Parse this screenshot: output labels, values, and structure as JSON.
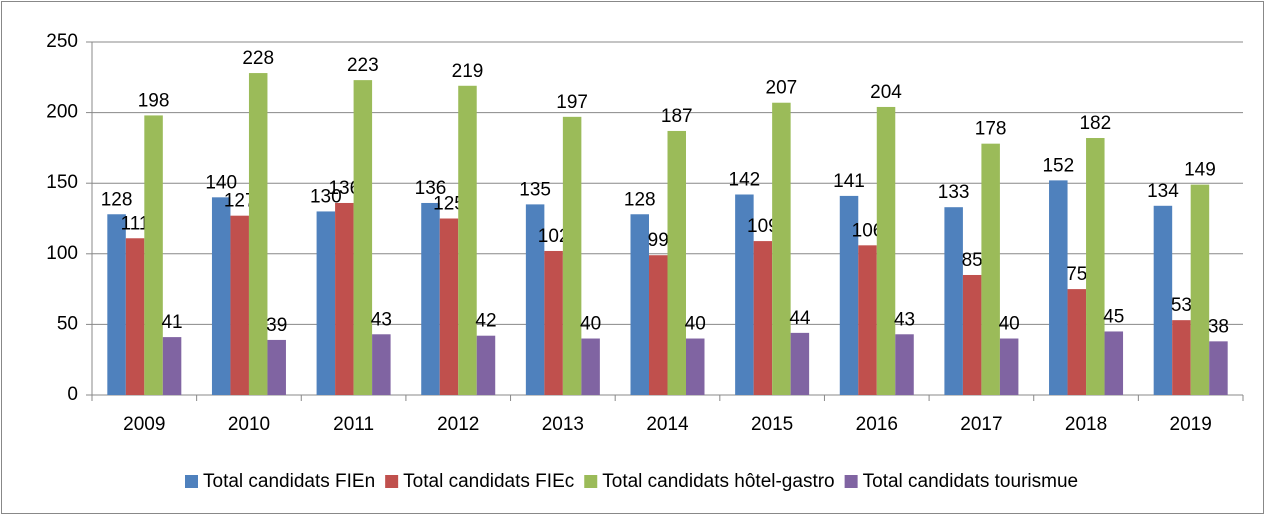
{
  "chart_data": {
    "type": "bar",
    "categories": [
      "2009",
      "2010",
      "2011",
      "2012",
      "2013",
      "2014",
      "2015",
      "2016",
      "2017",
      "2018",
      "2019"
    ],
    "series": [
      {
        "name": "Total candidats FIEn",
        "color": "#4f81bd",
        "values": [
          128,
          140,
          130,
          136,
          135,
          128,
          142,
          141,
          133,
          152,
          134
        ]
      },
      {
        "name": "Total candidats FIEc",
        "color": "#c0504d",
        "values": [
          111,
          127,
          136,
          125,
          102,
          99,
          109,
          106,
          85,
          75,
          53
        ]
      },
      {
        "name": "Total candidats hôtel-gastro",
        "color": "#9bbb59",
        "values": [
          198,
          228,
          223,
          219,
          197,
          187,
          207,
          204,
          178,
          182,
          149
        ]
      },
      {
        "name": "Total candidats tourismue",
        "color": "#8064a2",
        "values": [
          41,
          39,
          43,
          42,
          40,
          40,
          44,
          43,
          40,
          45,
          38
        ]
      }
    ],
    "ylim": [
      0,
      250
    ],
    "yticks": [
      0,
      50,
      100,
      150,
      200,
      250
    ],
    "grid": true,
    "legend": "bottom"
  }
}
